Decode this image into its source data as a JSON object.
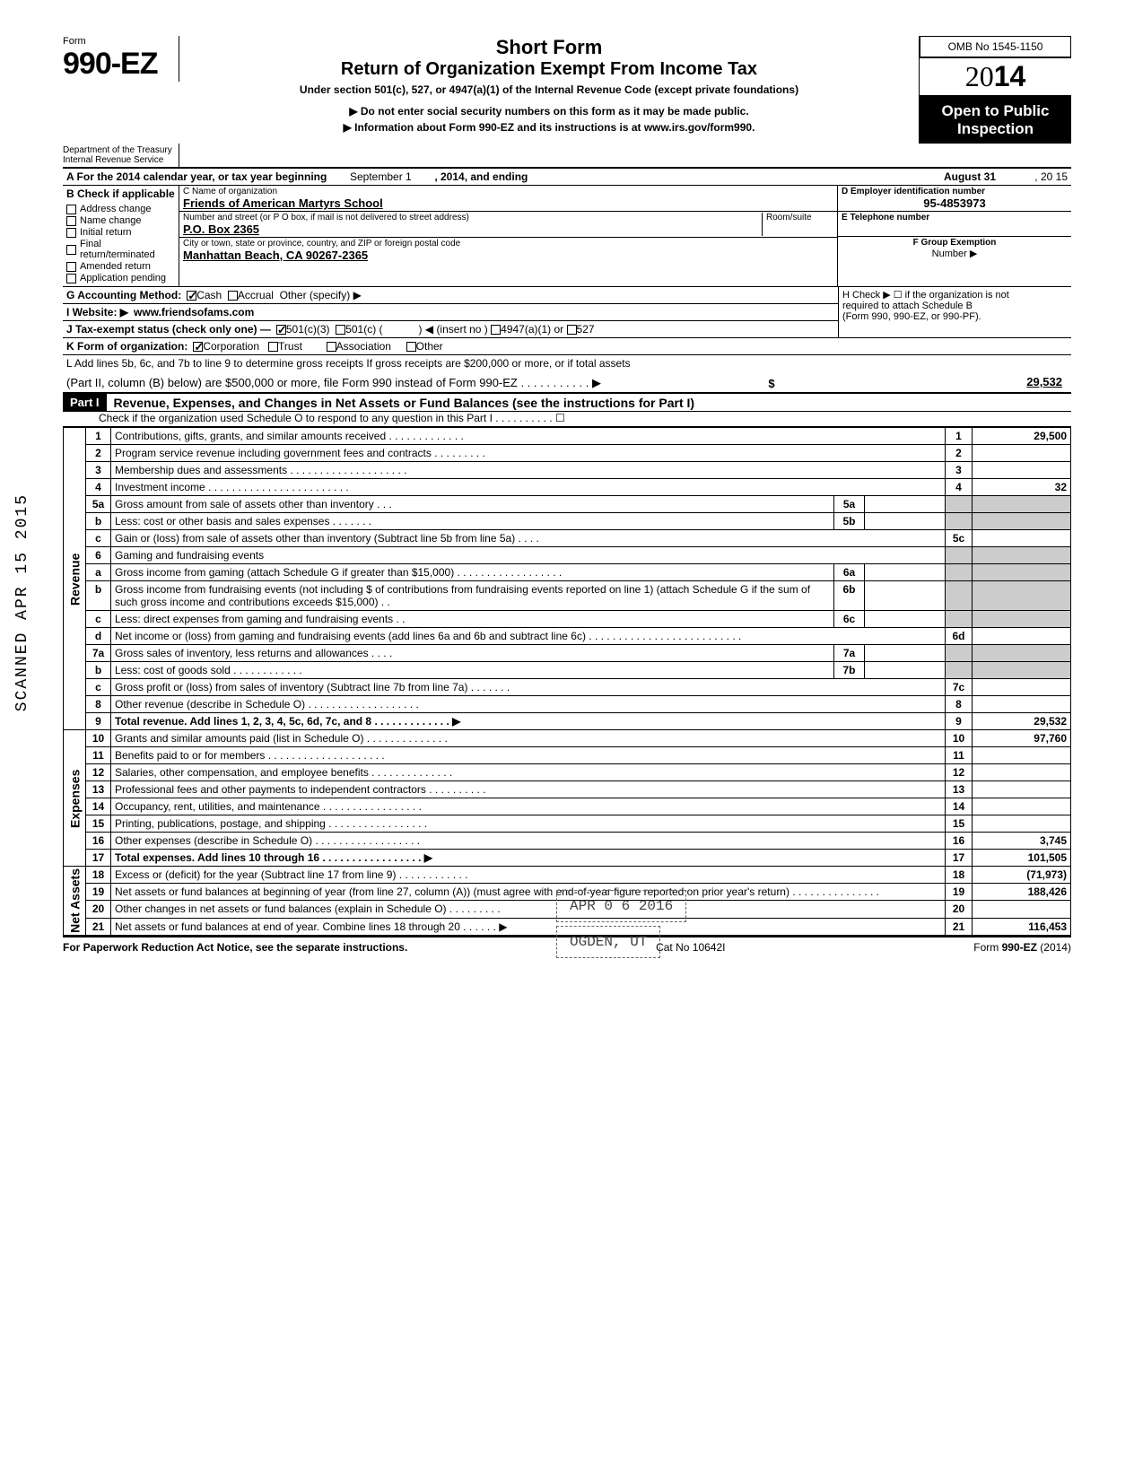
{
  "form": {
    "word": "Form",
    "number": "990-EZ"
  },
  "title": {
    "h1": "Short Form",
    "h2": "Return of Organization Exempt From Income Tax",
    "subtitle": "Under section 501(c), 527, or 4947(a)(1) of the Internal Revenue Code (except private foundations)",
    "note1": "▶ Do not enter social security numbers on this form as it may be made public.",
    "note2": "▶ Information about Form 990-EZ and its instructions is at www.irs.gov/form990."
  },
  "omb": "OMB No 1545-1150",
  "year": {
    "prefix": "20",
    "bold": "14"
  },
  "open": {
    "l1": "Open to Public",
    "l2": "Inspection"
  },
  "dept": {
    "l1": "Department of the Treasury",
    "l2": "Internal Revenue Service"
  },
  "lineA": {
    "pre": "A  For the 2014 calendar year, or tax year beginning",
    "mid": "September 1",
    "post": ", 2014, and ending",
    "end": "August 31",
    "yr": ", 20    15"
  },
  "colB": {
    "title": "B Check if applicable",
    "items": [
      "Address change",
      "Name change",
      "Initial return",
      "Final return/terminated",
      "Amended return",
      "Application pending"
    ]
  },
  "colC": {
    "nameLabel": "C  Name of organization",
    "name": "Friends of American Martyrs School",
    "streetLabel": "Number and street (or P O box, if mail is not delivered to street address)",
    "roomLabel": "Room/suite",
    "street": "P.O. Box 2365",
    "cityLabel": "City or town, state or province, country, and ZIP or foreign postal code",
    "city": "Manhattan Beach, CA 90267-2365"
  },
  "colRight": {
    "dLabel": "D Employer identification number",
    "d": "95-4853973",
    "eLabel": "E Telephone number",
    "e": "",
    "fLabel": "F Group Exemption",
    "fLabel2": "Number ▶",
    "f": ""
  },
  "rowG": {
    "label": "G Accounting Method:",
    "cash": "Cash",
    "accrual": "Accrual",
    "other": "Other (specify) ▶"
  },
  "rowI": {
    "label": "I  Website: ▶",
    "val": "www.friendsofams.com"
  },
  "rowH": {
    "text": "H Check ▶ ☐ if the organization is not",
    "text2": "required to attach Schedule B",
    "text3": "(Form 990, 990-EZ, or 990-PF)."
  },
  "rowJ": {
    "label": "J  Tax-exempt status (check only one) —",
    "a": "501(c)(3)",
    "b": "501(c) (",
    "b2": ") ◀ (insert no )",
    "c": "4947(a)(1) or",
    "d": "527"
  },
  "rowK": {
    "label": "K  Form of organization:",
    "corp": "Corporation",
    "trust": "Trust",
    "assoc": "Association",
    "other": "Other"
  },
  "rowL": {
    "text": "L  Add lines 5b, 6c, and 7b to line 9 to determine gross receipts  If gross receipts are $200,000 or more, or if total assets",
    "text2": "(Part II, column (B) below) are $500,000 or more, file Form 990 instead of Form 990-EZ .   .   .   .   .   .   .   .   .   .   .   ▶",
    "val": "29,532"
  },
  "part1": {
    "bar": "Part I",
    "title": "Revenue, Expenses, and Changes in Net Assets or Fund Balances (see the instructions for Part I)",
    "sub": "Check if the organization used Schedule O to respond to any question in this Part I .   .   .   .   .   .   .   .   .   . ☐"
  },
  "sideLabels": {
    "rev": "Revenue",
    "exp": "Expenses",
    "net": "Net Assets"
  },
  "lines": [
    {
      "n": "1",
      "t": "Contributions, gifts, grants, and similar amounts received .   .   .   .   .   .   .   .   .   .   .   .   .",
      "r": "1",
      "v": "29,500"
    },
    {
      "n": "2",
      "t": "Program service revenue including government fees and contracts   .   .   .   .   .   .   .   .   .",
      "r": "2",
      "v": ""
    },
    {
      "n": "3",
      "t": "Membership dues and assessments .   .   .   .   .   .   .   .   .   .   .   .   .   .   .   .   .   .   .   .",
      "r": "3",
      "v": ""
    },
    {
      "n": "4",
      "t": "Investment income   .   .   .   .   .   .   .   .   .   .   .   .   .   .   .   .   .   .   .   .   .   .   .   .",
      "r": "4",
      "v": "32"
    },
    {
      "n": "5a",
      "t": "Gross amount from sale of assets other than inventory   .   .   .",
      "mn": "5a",
      "mv": ""
    },
    {
      "n": "b",
      "t": "Less: cost or other basis and sales expenses .   .   .   .   .   .   .",
      "mn": "5b",
      "mv": ""
    },
    {
      "n": "c",
      "t": "Gain or (loss) from sale of assets other than inventory (Subtract line 5b from line 5a) .   .   .   .",
      "r": "5c",
      "v": ""
    },
    {
      "n": "6",
      "t": "Gaming and fundraising events"
    },
    {
      "n": "a",
      "t": "Gross income from gaming (attach Schedule G if greater than $15,000) .   .   .   .   .   .   .   .   .   .   .   .   .   .   .   .   .   .",
      "mn": "6a",
      "mv": ""
    },
    {
      "n": "b",
      "t": "Gross income from fundraising events (not including  $                       of contributions from fundraising events reported on line 1) (attach Schedule G if the sum of such gross income and contributions exceeds $15,000) .   .",
      "mn": "6b",
      "mv": ""
    },
    {
      "n": "c",
      "t": "Less: direct expenses from gaming and fundraising events   .   .",
      "mn": "6c",
      "mv": ""
    },
    {
      "n": "d",
      "t": "Net income or (loss) from gaming and fundraising events (add lines 6a and 6b and subtract line 6c)   .   .   .   .   .   .   .   .   .   .   .   .   .   .   .   .   .   .   .   .   .   .   .   .   .   .",
      "r": "6d",
      "v": ""
    },
    {
      "n": "7a",
      "t": "Gross sales of inventory, less returns and allowances  .   .   .   .",
      "mn": "7a",
      "mv": ""
    },
    {
      "n": "b",
      "t": "Less: cost of goods sold     .   .   .   .   .   .   .   .   .   .   .   .",
      "mn": "7b",
      "mv": ""
    },
    {
      "n": "c",
      "t": "Gross profit or (loss) from sales of inventory (Subtract line 7b from line 7a)  .   .   .   .   .   .   .",
      "r": "7c",
      "v": ""
    },
    {
      "n": "8",
      "t": "Other revenue (describe in Schedule O) .   .   .   .   .   .   .   .   .   .   .   .   .   .   .   .   .   .   .",
      "r": "8",
      "v": ""
    },
    {
      "n": "9",
      "t": "Total revenue. Add lines 1, 2, 3, 4, 5c, 6d, 7c, and 8   .   .   .   .   .   .   .   .   .   .   .   .   . ▶",
      "r": "9",
      "v": "29,532",
      "bold": true
    }
  ],
  "expLines": [
    {
      "n": "10",
      "t": "Grants and similar amounts paid (list in Schedule O)   .   .   .   .   .   .   .   .   .   .   .   .   .   .",
      "r": "10",
      "v": "97,760"
    },
    {
      "n": "11",
      "t": "Benefits paid to or for members   .   .   .   .   .   .   .   .   .   .   .   .   .   .   .   .   .   .   .   .",
      "r": "11",
      "v": ""
    },
    {
      "n": "12",
      "t": "Salaries, other compensation, and employee benefits  .   .   .   .   .   .   .   .   .   .   .   .   .   .",
      "r": "12",
      "v": ""
    },
    {
      "n": "13",
      "t": "Professional fees and other payments to independent contractors .   .   .   .   .   .   .   .   .   .",
      "r": "13",
      "v": ""
    },
    {
      "n": "14",
      "t": "Occupancy, rent, utilities, and maintenance   .   .   .   .   .   .   .   .   .   .   .   .   .   .   .   .   .",
      "r": "14",
      "v": ""
    },
    {
      "n": "15",
      "t": "Printing, publications, postage, and shipping .   .   .   .   .   .   .   .   .   .   .   .   .   .   .   .   .",
      "r": "15",
      "v": ""
    },
    {
      "n": "16",
      "t": "Other expenses (describe in Schedule O)  .   .   .   .   .   .   .   .   .   .   .   .   .   .   .   .   .   .",
      "r": "16",
      "v": "3,745"
    },
    {
      "n": "17",
      "t": "Total expenses. Add lines 10 through 16  .   .   .   .   .   .   .   .   .   .   .   .   .   .   .   .   . ▶",
      "r": "17",
      "v": "101,505",
      "bold": true
    }
  ],
  "netLines": [
    {
      "n": "18",
      "t": "Excess or (deficit) for the year (Subtract line 17 from line 9)   .   .   .   .   .   .   .   .   .   .   .   .",
      "r": "18",
      "v": "(71,973)"
    },
    {
      "n": "19",
      "t": "Net assets or fund balances at beginning of year (from line 27, column (A)) (must agree with end-of-year figure reported on prior year's return)   .   .   .   .   .   .   .   .   .   .   .   .   .   .   .",
      "r": "19",
      "v": "188,426"
    },
    {
      "n": "20",
      "t": "Other changes in net assets or fund balances (explain in Schedule O) .   .   .   .   .   .   .   .   .",
      "r": "20",
      "v": ""
    },
    {
      "n": "21",
      "t": "Net assets or fund balances at end of year. Combine lines 18 through 20   .   .   .   .   .   . ▶",
      "r": "21",
      "v": "116,453"
    }
  ],
  "footer": {
    "left": "For Paperwork Reduction Act Notice, see the separate instructions.",
    "mid": "Cat No 10642I",
    "right": "Form 990-EZ (2014)"
  },
  "sideStamp": "SCANNED APR 15 2015",
  "stamps": {
    "date": "APR 0 6 2016",
    "place": "OGDEN, UT"
  }
}
